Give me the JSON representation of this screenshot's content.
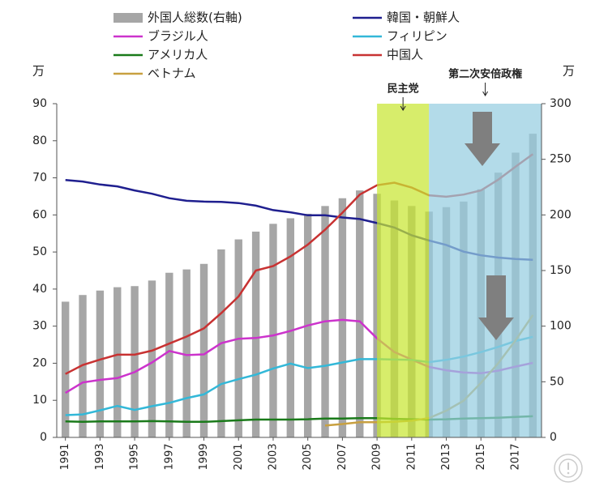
{
  "chart_data": {
    "type": "combo",
    "y_unit": "万",
    "y2_unit": "万",
    "x": [
      1991,
      1992,
      1993,
      1994,
      1995,
      1996,
      1997,
      1998,
      1999,
      2000,
      2001,
      2002,
      2003,
      2004,
      2005,
      2006,
      2007,
      2008,
      2009,
      2010,
      2011,
      2012,
      2013,
      2014,
      2015,
      2016,
      2017,
      2018
    ],
    "xlim": [
      1990.5,
      2018.5
    ],
    "xticks": [
      1991,
      1993,
      1995,
      1997,
      1999,
      2001,
      2003,
      2005,
      2007,
      2009,
      2011,
      2013,
      2015,
      2017
    ],
    "ylim": [
      0,
      90
    ],
    "yticks": [
      0,
      10,
      20,
      30,
      40,
      50,
      60,
      70,
      80,
      90
    ],
    "y2lim": [
      0,
      300
    ],
    "y2ticks": [
      0,
      50,
      100,
      150,
      200,
      250,
      300
    ],
    "series": [
      {
        "name": "外国人総数(右軸)",
        "type": "bar",
        "axis": "y2",
        "color": "#a6a6a6",
        "values": [
          122,
          128,
          132,
          135,
          136,
          141,
          148,
          151,
          156,
          169,
          178,
          185,
          192,
          197,
          201,
          208,
          215,
          222,
          219,
          213,
          208,
          203,
          207,
          212,
          223,
          238,
          256,
          273
        ]
      },
      {
        "name": "韓国・朝鮮人",
        "type": "line",
        "color": "#1f1f8f",
        "values": [
          69.4,
          69,
          68.2,
          67.7,
          66.6,
          65.7,
          64.5,
          63.8,
          63.6,
          63.5,
          63.2,
          62.5,
          61.3,
          60.7,
          59.9,
          59.9,
          59.3,
          58.9,
          57.8,
          56.6,
          54.5,
          53.1,
          51.9,
          50.1,
          49.1,
          48.5,
          48.1,
          47.9
        ]
      },
      {
        "name": "ブラジル人",
        "type": "line",
        "color": "#cc33cc",
        "values": [
          12,
          14.8,
          15.5,
          16,
          17.6,
          20.2,
          23.3,
          22.2,
          22.4,
          25.4,
          26.6,
          26.8,
          27.5,
          28.7,
          30.2,
          31.3,
          31.7,
          31.3,
          26.7,
          23,
          21,
          19,
          18.1,
          17.5,
          17.3,
          18,
          19.1,
          20.1
        ]
      },
      {
        "name": "フィリピン",
        "type": "line",
        "color": "#33b8d8",
        "values": [
          6,
          6.2,
          7.3,
          8.5,
          7.4,
          8.4,
          9.3,
          10.6,
          11.6,
          14.4,
          15.7,
          16.9,
          18.6,
          19.9,
          18.7,
          19.3,
          20.2,
          21.1,
          21.1,
          21,
          20.9,
          20.3,
          20.9,
          21.8,
          23,
          24.4,
          26,
          27.1
        ]
      },
      {
        "name": "アメリカ人",
        "type": "line",
        "color": "#1a7a1a",
        "values": [
          4.3,
          4.2,
          4.3,
          4.3,
          4.3,
          4.4,
          4.3,
          4.2,
          4.2,
          4.4,
          4.6,
          4.8,
          4.8,
          4.8,
          4.9,
          5.1,
          5.1,
          5.2,
          5.2,
          5.0,
          4.9,
          4.8,
          4.9,
          5.1,
          5.2,
          5.3,
          5.5,
          5.7
        ]
      },
      {
        "name": "中国人",
        "type": "line",
        "color": "#c83232",
        "values": [
          17.1,
          19.5,
          21,
          22.3,
          22.3,
          23.4,
          25.3,
          27.2,
          29.4,
          33.5,
          38,
          45,
          46.2,
          48.8,
          52,
          56,
          60.6,
          65.5,
          68,
          68.7,
          67.4,
          65.3,
          64.9,
          65.5,
          66.6,
          69.5,
          73,
          76.4
        ]
      },
      {
        "name": "ベトナム",
        "type": "line",
        "color": "#c8a040",
        "values": [
          null,
          null,
          null,
          null,
          null,
          null,
          null,
          null,
          null,
          null,
          null,
          null,
          null,
          null,
          null,
          3.2,
          3.6,
          4.1,
          4.1,
          4.2,
          4.5,
          5.2,
          7.2,
          9.9,
          14.7,
          20,
          26.2,
          33
        ]
      }
    ],
    "periods": [
      {
        "label": "民主党",
        "from": 2009,
        "color": "#c8e632"
      },
      {
        "label": "第二次安倍政権",
        "from": 2012,
        "color": "#96cde1"
      }
    ]
  }
}
